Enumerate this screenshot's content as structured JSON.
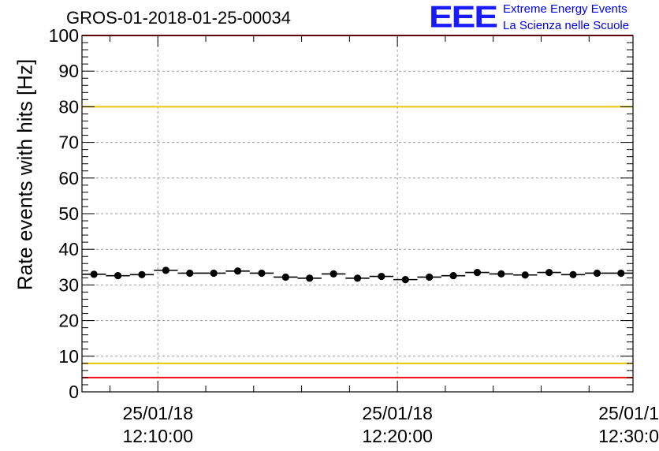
{
  "title": "GROS-01-2018-01-25-00034",
  "logo": {
    "mark": "EEE",
    "line1": "Extreme Energy Events",
    "line2": "La Scienza nelle Scuole"
  },
  "chart_data": {
    "type": "scatter",
    "title": "GROS-01-2018-01-25-00034",
    "xlabel": "",
    "ylabel": "Rate events with hits [Hz]",
    "xlim": [
      "2018-01-25T12:06:50",
      "2018-01-25T12:29:50"
    ],
    "ylim": [
      0,
      100
    ],
    "grid": true,
    "yticks": [
      0,
      10,
      20,
      30,
      40,
      50,
      60,
      70,
      80,
      90,
      100
    ],
    "xticks": [
      {
        "t": "2018-01-25T12:10:00",
        "date": "25/01/18",
        "time": "12:10:00"
      },
      {
        "t": "2018-01-25T12:20:00",
        "date": "25/01/18",
        "time": "12:20:00"
      },
      {
        "t": "2018-01-25T12:30:00",
        "date": "25/01/1",
        "time": "12:30:0"
      }
    ],
    "series": [
      {
        "x": [
          "12:07:20",
          "12:08:20",
          "12:09:20",
          "12:10:20",
          "12:11:20",
          "12:12:20",
          "12:13:20",
          "12:14:20",
          "12:15:20",
          "12:16:20",
          "12:17:20",
          "12:18:20",
          "12:19:20",
          "12:20:20",
          "12:21:20",
          "12:22:20",
          "12:23:20",
          "12:24:20",
          "12:25:20",
          "12:26:20",
          "12:27:20",
          "12:28:20",
          "12:29:20"
        ],
        "y": [
          33.0,
          32.6,
          32.9,
          34.1,
          33.3,
          33.3,
          33.9,
          33.3,
          32.2,
          31.9,
          33.1,
          31.9,
          32.4,
          31.5,
          32.2,
          32.6,
          33.5,
          33.1,
          32.8,
          33.5,
          32.9,
          33.3,
          33.3
        ],
        "bin_width_s": 60
      }
    ],
    "reference_lines": [
      {
        "y": 80,
        "color": "#e8c800"
      },
      {
        "y": 8,
        "color": "#e8c800"
      },
      {
        "y": 4,
        "color": "#ee1111"
      },
      {
        "y": 100,
        "color": "#ee1111"
      }
    ]
  }
}
